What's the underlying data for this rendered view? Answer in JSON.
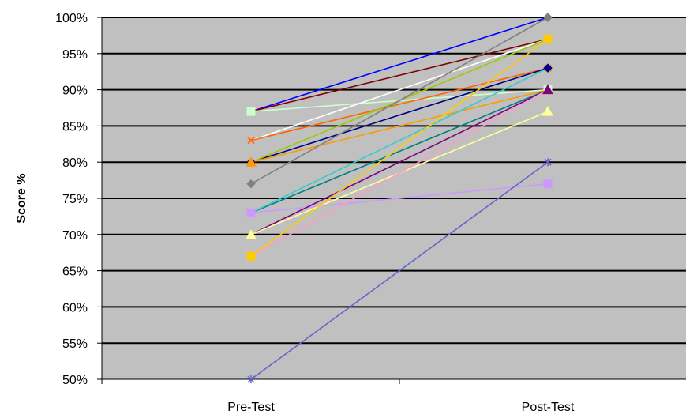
{
  "chart_data": {
    "type": "line",
    "title": "",
    "xlabel": "",
    "ylabel": "Score %",
    "categories": [
      "Pre-Test",
      "Post-Test"
    ],
    "ylim": [
      50,
      100
    ],
    "yticks": [
      "50%",
      "55%",
      "60%",
      "65%",
      "70%",
      "75%",
      "80%",
      "85%",
      "90%",
      "95%",
      "100%"
    ],
    "ytick_values": [
      50,
      55,
      60,
      65,
      70,
      75,
      80,
      85,
      90,
      95,
      100
    ],
    "grid": true,
    "legend": "none",
    "plot_background": "#C0C0C0",
    "series": [
      {
        "values": [
          87,
          100
        ],
        "color": "#0000FF",
        "marker": "diamond"
      },
      {
        "values": [
          87,
          97
        ],
        "color": "#800000",
        "marker": "none"
      },
      {
        "values": [
          87,
          90
        ],
        "color": "#CCFFCC",
        "marker": "square"
      },
      {
        "values": [
          83,
          97
        ],
        "color": "#FFFFFF",
        "marker": "x"
      },
      {
        "values": [
          83,
          93
        ],
        "color": "#FF6600",
        "marker": "x"
      },
      {
        "values": [
          80,
          93
        ],
        "color": "#000080",
        "marker": "diamond"
      },
      {
        "values": [
          80,
          97
        ],
        "color": "#99CC00",
        "marker": "none"
      },
      {
        "values": [
          80,
          90
        ],
        "color": "#FF9900",
        "marker": "triangle"
      },
      {
        "values": [
          77,
          100
        ],
        "color": "#808080",
        "marker": "diamond"
      },
      {
        "values": [
          73,
          90
        ],
        "color": "#008080",
        "marker": "none"
      },
      {
        "values": [
          73,
          93
        ],
        "color": "#33CCCC",
        "marker": "none"
      },
      {
        "values": [
          73,
          77
        ],
        "color": "#CC99FF",
        "marker": "square"
      },
      {
        "values": [
          70,
          90
        ],
        "color": "#800080",
        "marker": "triangle"
      },
      {
        "values": [
          70,
          87
        ],
        "color": "#FFFF99",
        "marker": "triangle"
      },
      {
        "values": [
          67,
          97
        ],
        "color": "#FFCC00",
        "marker": "square"
      },
      {
        "values": [
          67,
          90
        ],
        "color": "#FF99CC",
        "marker": "none"
      },
      {
        "values": [
          50,
          80
        ],
        "color": "#6666CC",
        "marker": "asterisk"
      }
    ]
  }
}
